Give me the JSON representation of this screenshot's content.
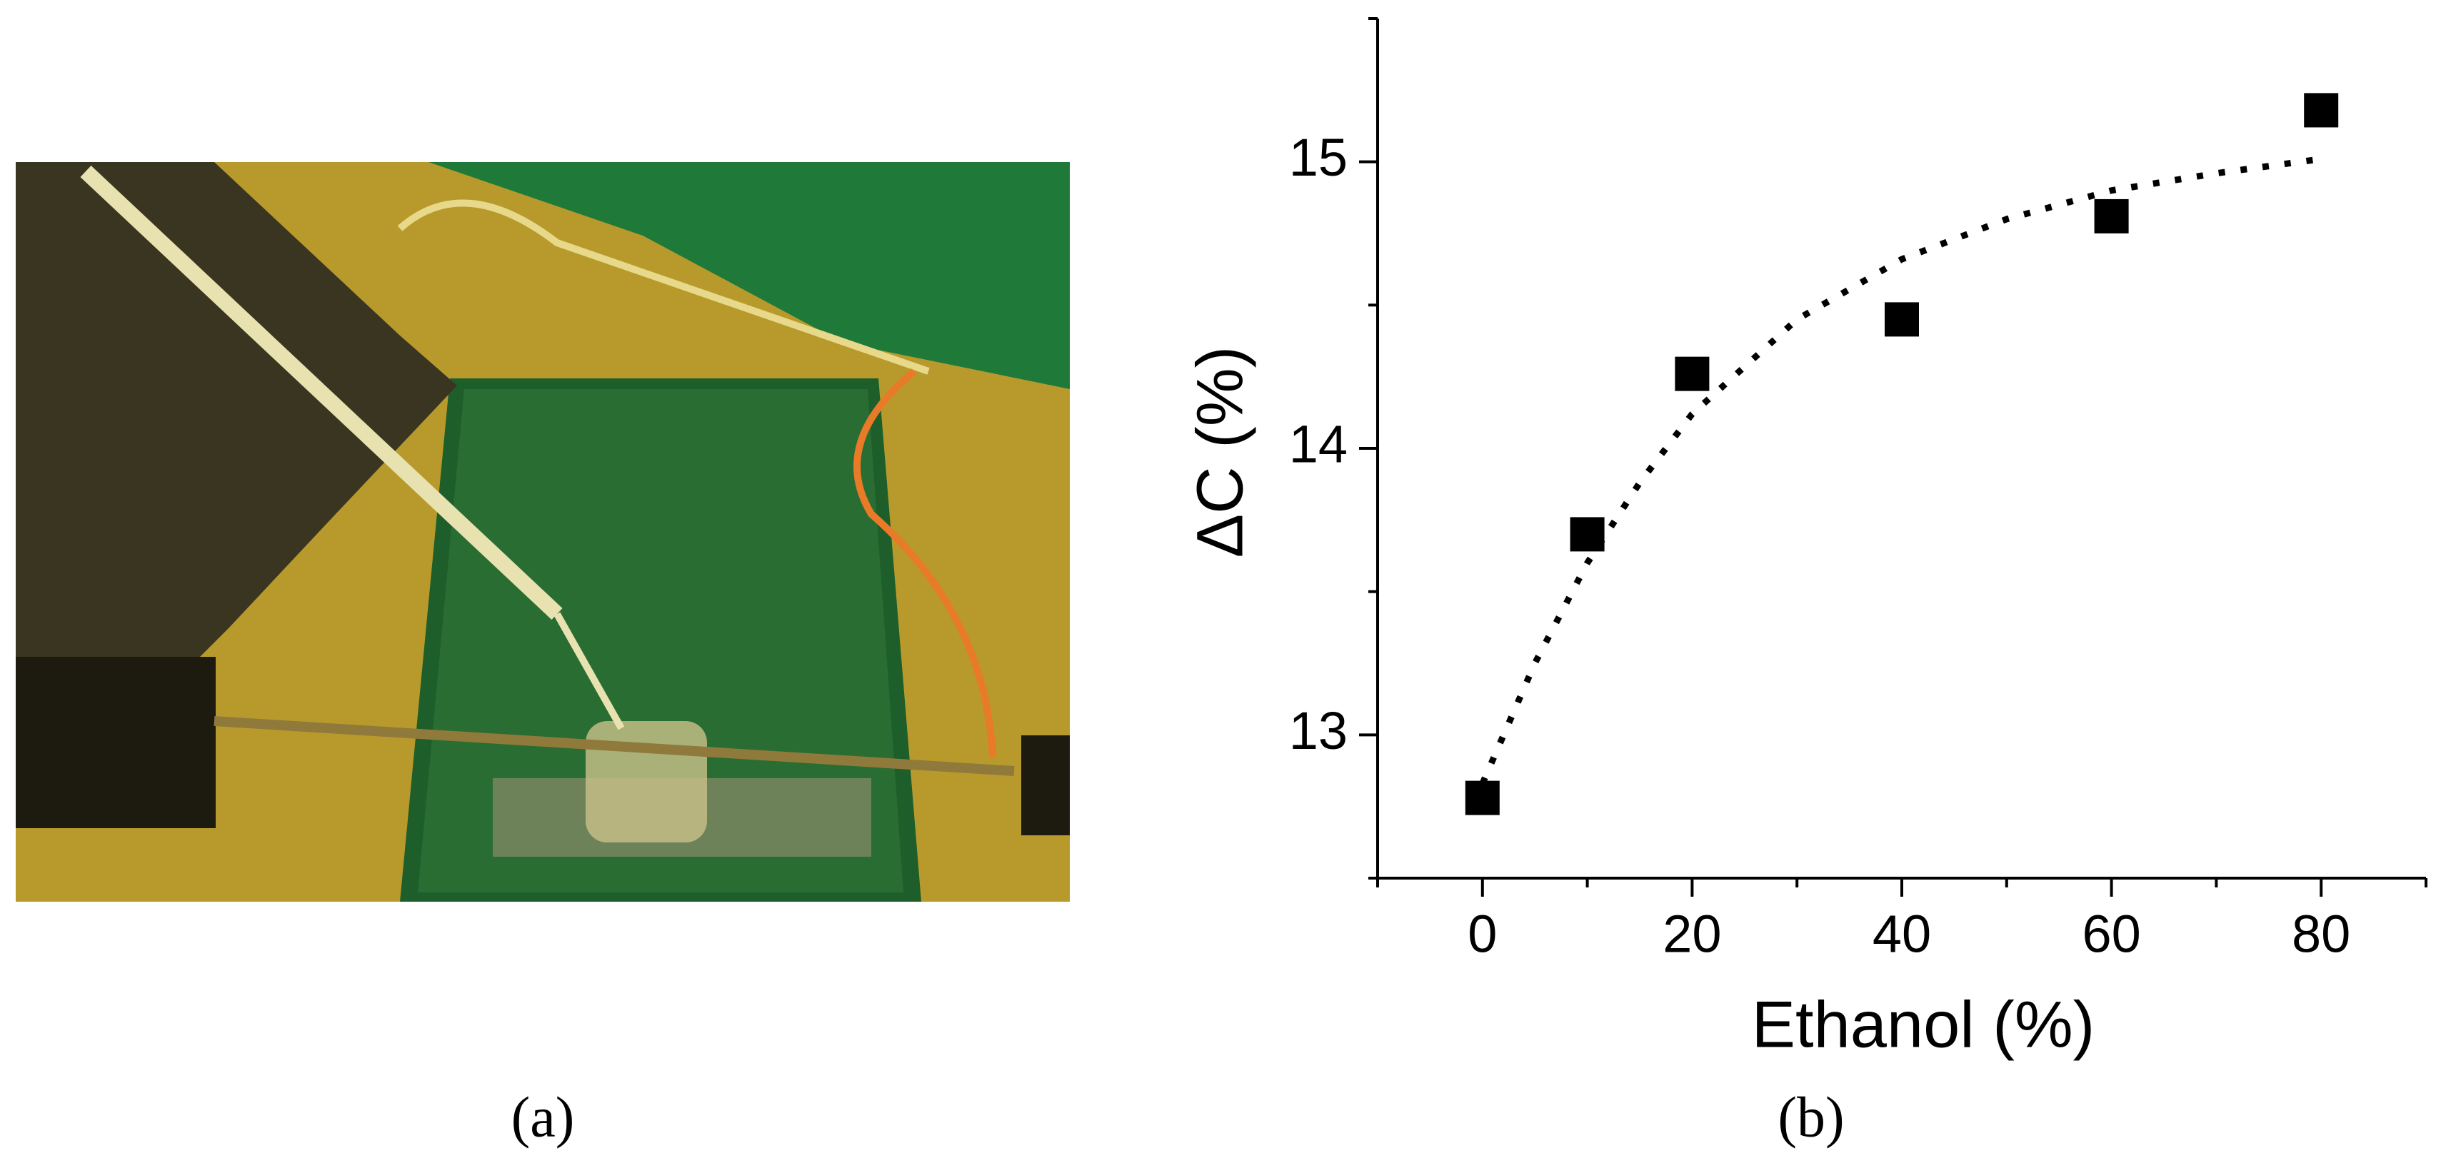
{
  "chart_data": {
    "type": "scatter",
    "xlabel": "Ethanol (%)",
    "ylabel": "ΔC (%)",
    "x": [
      0,
      10,
      20,
      40,
      60,
      80
    ],
    "values": [
      12.78,
      13.7,
      14.26,
      14.45,
      14.81,
      15.18
    ],
    "color": "#000000",
    "marker": "square",
    "fit": {
      "style": "dotted",
      "color": "#000000",
      "x": [
        0,
        5,
        10,
        15,
        20,
        30,
        40,
        50,
        60,
        70,
        80
      ],
      "values": [
        12.83,
        13.25,
        13.6,
        13.88,
        14.12,
        14.45,
        14.66,
        14.8,
        14.9,
        14.96,
        15.01
      ]
    },
    "xlim": [
      -10,
      90
    ],
    "ylim": [
      12.5,
      15.5
    ],
    "xticks": [
      0,
      20,
      40,
      60,
      80
    ],
    "yticks": [
      13,
      14,
      15
    ],
    "xminorticks": [
      -10,
      10,
      30,
      50,
      70,
      90
    ],
    "yminorticks": [
      12.5,
      13.5,
      14.5,
      15.5
    ]
  },
  "captions": {
    "photo": "(a)",
    "chart": "(b)"
  }
}
